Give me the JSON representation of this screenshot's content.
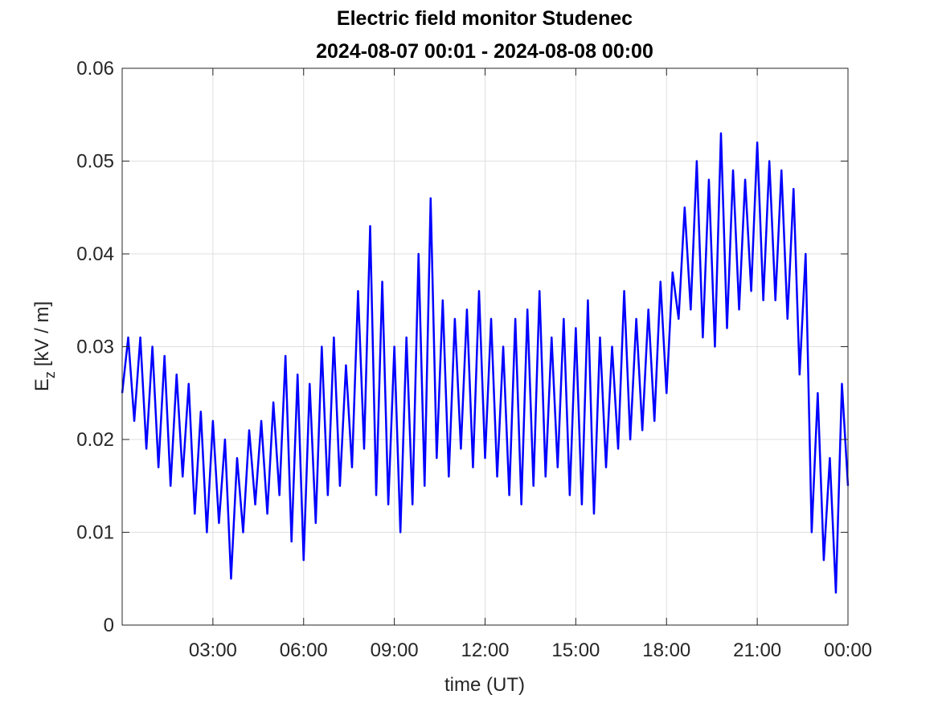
{
  "chart_data": {
    "type": "line",
    "title": "Electric field monitor Studenec",
    "subtitle": "2024-08-07 00:01 - 2024-08-08 00:00",
    "xlabel": "time (UT)",
    "ylabel": "E",
    "ylabel_sub": "z",
    "ylabel_unit": "[kV / m]",
    "x": [
      0,
      0.2,
      0.4,
      0.6,
      0.8,
      1,
      1.2,
      1.4,
      1.6,
      1.8,
      2,
      2.2,
      2.4,
      2.6,
      2.8,
      3,
      3.2,
      3.4,
      3.6,
      3.8,
      4,
      4.2,
      4.4,
      4.6,
      4.8,
      5,
      5.2,
      5.4,
      5.6,
      5.8,
      6,
      6.2,
      6.4,
      6.6,
      6.8,
      7,
      7.2,
      7.4,
      7.6,
      7.8,
      8,
      8.2,
      8.4,
      8.6,
      8.8,
      9,
      9.2,
      9.4,
      9.6,
      9.8,
      10,
      10.2,
      10.4,
      10.6,
      10.8,
      11,
      11.2,
      11.4,
      11.6,
      11.8,
      12,
      12.2,
      12.4,
      12.6,
      12.8,
      13,
      13.2,
      13.4,
      13.6,
      13.8,
      14,
      14.2,
      14.4,
      14.6,
      14.8,
      15,
      15.2,
      15.4,
      15.6,
      15.8,
      16,
      16.2,
      16.4,
      16.6,
      16.8,
      17,
      17.2,
      17.4,
      17.6,
      17.8,
      18,
      18.2,
      18.4,
      18.6,
      18.8,
      19,
      19.2,
      19.4,
      19.6,
      19.8,
      20,
      20.2,
      20.4,
      20.6,
      20.8,
      21,
      21.2,
      21.4,
      21.6,
      21.8,
      22,
      22.2,
      22.4,
      22.6,
      22.8,
      23,
      23.2,
      23.4,
      23.6,
      23.8,
      24
    ],
    "series": [
      {
        "color": "#0000ff",
        "values": [
          0.025,
          0.031,
          0.022,
          0.031,
          0.019,
          0.03,
          0.017,
          0.029,
          0.015,
          0.027,
          0.016,
          0.026,
          0.012,
          0.023,
          0.01,
          0.022,
          0.011,
          0.02,
          0.005,
          0.018,
          0.01,
          0.021,
          0.013,
          0.022,
          0.012,
          0.024,
          0.014,
          0.029,
          0.009,
          0.027,
          0.007,
          0.026,
          0.011,
          0.03,
          0.014,
          0.031,
          0.015,
          0.028,
          0.017,
          0.036,
          0.019,
          0.043,
          0.014,
          0.037,
          0.013,
          0.03,
          0.01,
          0.031,
          0.013,
          0.04,
          0.015,
          0.046,
          0.018,
          0.035,
          0.016,
          0.033,
          0.019,
          0.034,
          0.017,
          0.036,
          0.018,
          0.033,
          0.016,
          0.03,
          0.014,
          0.033,
          0.013,
          0.034,
          0.015,
          0.036,
          0.016,
          0.031,
          0.017,
          0.033,
          0.014,
          0.032,
          0.013,
          0.035,
          0.012,
          0.031,
          0.017,
          0.03,
          0.019,
          0.036,
          0.02,
          0.033,
          0.021,
          0.034,
          0.022,
          0.037,
          0.025,
          0.038,
          0.033,
          0.045,
          0.034,
          0.05,
          0.031,
          0.048,
          0.03,
          0.053,
          0.032,
          0.049,
          0.034,
          0.048,
          0.036,
          0.052,
          0.035,
          0.05,
          0.035,
          0.049,
          0.033,
          0.047,
          0.027,
          0.04,
          0.01,
          0.025,
          0.007,
          0.018,
          0.0035,
          0.026,
          0.015
        ]
      }
    ],
    "xlim": [
      0,
      24
    ],
    "xticks": [
      {
        "value": 3,
        "label": "03:00"
      },
      {
        "value": 6,
        "label": "06:00"
      },
      {
        "value": 9,
        "label": "09:00"
      },
      {
        "value": 12,
        "label": "12:00"
      },
      {
        "value": 15,
        "label": "15:00"
      },
      {
        "value": 18,
        "label": "18:00"
      },
      {
        "value": 21,
        "label": "21:00"
      },
      {
        "value": 24,
        "label": "00:00"
      }
    ],
    "ylim": [
      0,
      0.06
    ],
    "yticks": [
      0,
      0.01,
      0.02,
      0.03,
      0.04,
      0.05,
      0.06
    ],
    "grid": true
  }
}
